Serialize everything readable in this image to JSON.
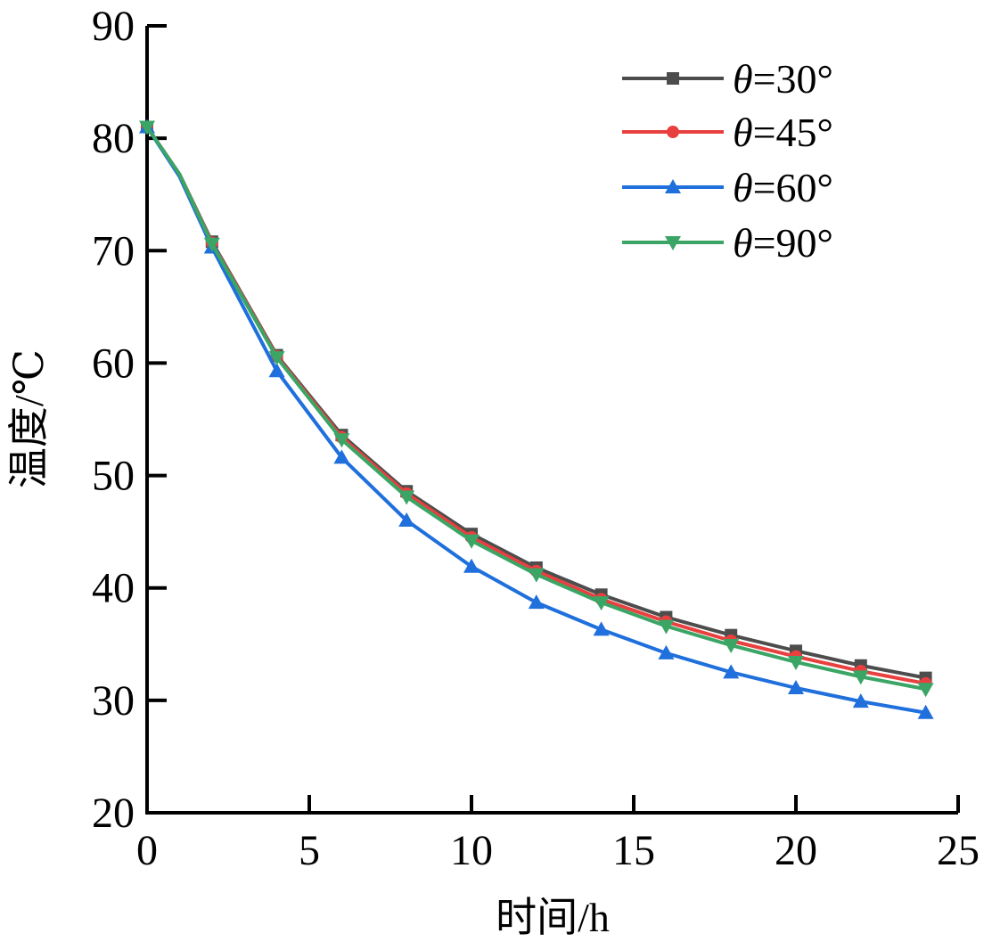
{
  "chart_data": {
    "type": "line",
    "title": "",
    "xlabel": "时间/h",
    "ylabel": "温度/℃",
    "xlim": [
      0,
      25
    ],
    "ylim": [
      20,
      90
    ],
    "xticks": [
      0,
      5,
      10,
      15,
      20,
      25
    ],
    "yticks": [
      20,
      30,
      40,
      50,
      60,
      70,
      80,
      90
    ],
    "grid": false,
    "legend_position": "top-right",
    "x": [
      0,
      1,
      2,
      4,
      6,
      8,
      10,
      12,
      14,
      16,
      18,
      20,
      22,
      24
    ],
    "marker_x": [
      0,
      2,
      4,
      6,
      8,
      10,
      12,
      14,
      16,
      18,
      20,
      22,
      24
    ],
    "series": [
      {
        "name": "θ=30°",
        "color": "#4d4d4d",
        "marker": "square",
        "values": [
          81.0,
          76.8,
          70.8,
          60.7,
          53.6,
          48.6,
          44.8,
          41.8,
          39.4,
          37.4,
          35.8,
          34.4,
          33.1,
          32.0
        ]
      },
      {
        "name": "θ=45°",
        "color": "#e8403f",
        "marker": "circle",
        "values": [
          81.0,
          76.8,
          70.7,
          60.6,
          53.4,
          48.4,
          44.5,
          41.5,
          39.0,
          37.0,
          35.3,
          33.9,
          32.6,
          31.5
        ]
      },
      {
        "name": "θ=60°",
        "color": "#1f6fdc",
        "marker": "triangle-up",
        "values": [
          81.0,
          76.6,
          70.3,
          59.3,
          51.6,
          46.0,
          41.9,
          38.7,
          36.3,
          34.2,
          32.5,
          31.1,
          29.9,
          28.9
        ]
      },
      {
        "name": "θ=90°",
        "color": "#3aa565",
        "marker": "triangle-down",
        "values": [
          81.0,
          76.8,
          70.6,
          60.5,
          53.2,
          48.1,
          44.2,
          41.2,
          38.7,
          36.6,
          34.9,
          33.4,
          32.1,
          31.0
        ]
      }
    ]
  }
}
